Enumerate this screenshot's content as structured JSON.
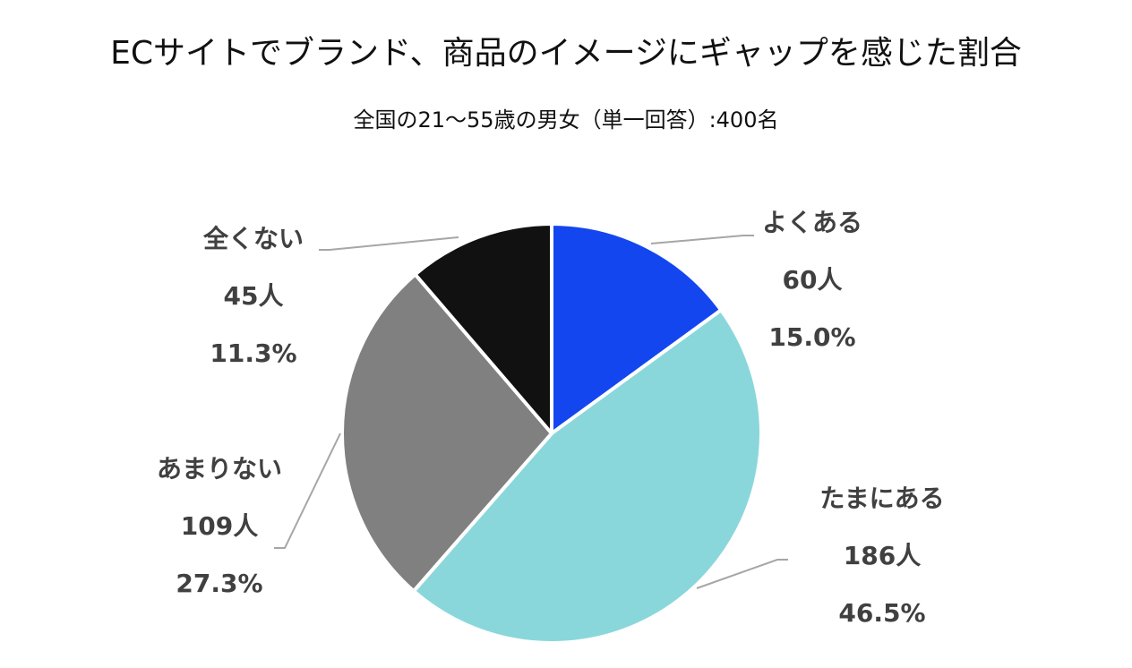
{
  "chart_data": {
    "type": "pie",
    "title": "ECサイトでブランド、商品のイメージにギャップを感じた割合",
    "subtitle": "全国の21～55歳の男女（単一回答）:400名",
    "slices": [
      {
        "label": "よくある",
        "count": "60人",
        "percent": "15.0%",
        "value": 15.0,
        "color": "#1446F0"
      },
      {
        "label": "たまにある",
        "count": "186人",
        "percent": "46.5%",
        "value": 46.5,
        "color": "#8AD7DB"
      },
      {
        "label": "あまりない",
        "count": "109人",
        "percent": "27.3%",
        "value": 27.3,
        "color": "#808080"
      },
      {
        "label": "全くない",
        "count": "45人",
        "percent": "11.3%",
        "value": 11.3,
        "color": "#111111"
      }
    ]
  }
}
